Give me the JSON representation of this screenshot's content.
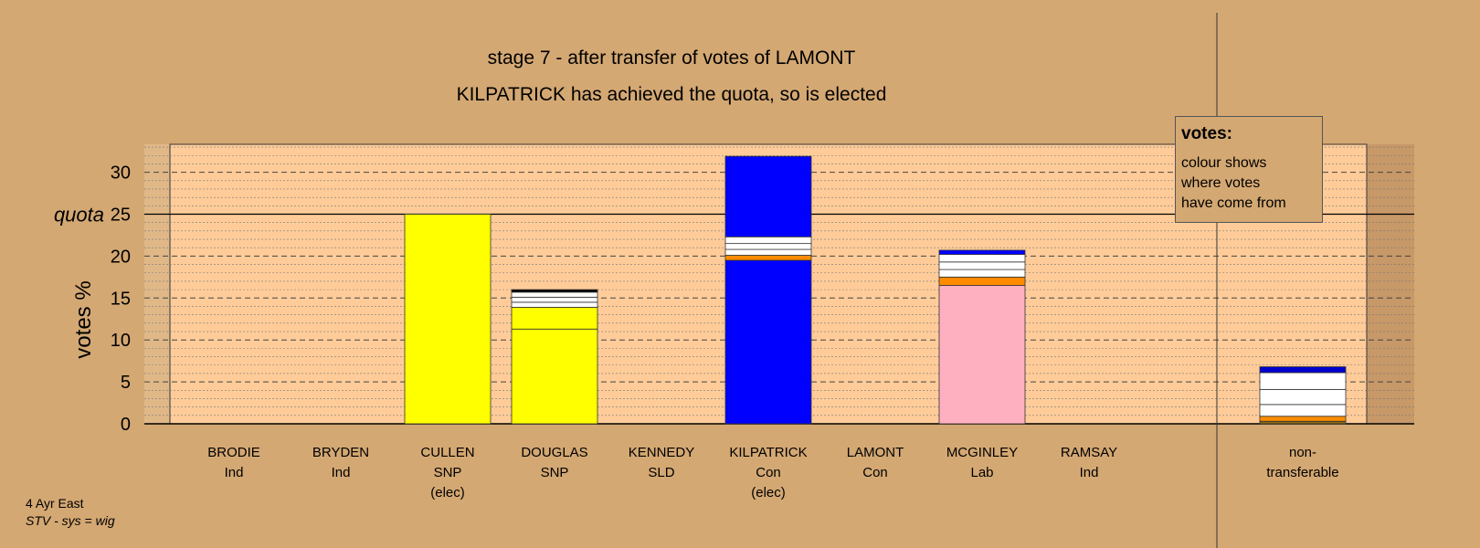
{
  "chart_data": {
    "type": "bar",
    "title": "stage 7 - after transfer of votes of LAMONT",
    "subtitle": "KILPATRICK has achieved the quota, so is elected",
    "ylabel": "votes %",
    "ylim": [
      0,
      33
    ],
    "yticks": [
      0,
      5,
      10,
      15,
      20,
      25,
      30
    ],
    "quota": 25,
    "quota_label": "quota",
    "grid": true,
    "legend_placement": "top-right",
    "categories": [
      {
        "name": "BRODIE",
        "party": "Ind",
        "note": ""
      },
      {
        "name": "BRYDEN",
        "party": "Ind",
        "note": ""
      },
      {
        "name": "CULLEN",
        "party": "SNP",
        "note": "(elec)"
      },
      {
        "name": "DOUGLAS",
        "party": "SNP",
        "note": ""
      },
      {
        "name": "KENNEDY",
        "party": "SLD",
        "note": ""
      },
      {
        "name": "KILPATRICK",
        "party": "Con",
        "note": "(elec)"
      },
      {
        "name": "LAMONT",
        "party": "Con",
        "note": ""
      },
      {
        "name": "MCGINLEY",
        "party": "Lab",
        "note": ""
      },
      {
        "name": "RAMSAY",
        "party": "Ind",
        "note": ""
      }
    ],
    "nontransferable": {
      "line1": "non-",
      "line2": "transferable"
    },
    "bars": [
      [],
      [],
      [
        {
          "value": 25.0,
          "color": "#FFFF00"
        }
      ],
      [
        {
          "value": 11.3,
          "color": "#FFFF00"
        },
        {
          "value": 2.6,
          "color": "#FFFF00"
        },
        {
          "value": 0.6,
          "color": "#FFFFFF"
        },
        {
          "value": 0.6,
          "color": "#FFFFFF"
        },
        {
          "value": 0.6,
          "color": "#FFFFFF"
        },
        {
          "value": 0.3,
          "color": "#000000"
        }
      ],
      [],
      [
        {
          "value": 19.5,
          "color": "#0000FF"
        },
        {
          "value": 0.6,
          "color": "#FF8C00"
        },
        {
          "value": 0.7,
          "color": "#FFFFFF"
        },
        {
          "value": 0.7,
          "color": "#FFFFFF"
        },
        {
          "value": 0.8,
          "color": "#FFFFFF"
        },
        {
          "value": 9.6,
          "color": "#0000FF"
        }
      ],
      [],
      [
        {
          "value": 16.5,
          "color": "#FFB0C0"
        },
        {
          "value": 1.0,
          "color": "#FF8C00"
        },
        {
          "value": 0.9,
          "color": "#FFFFFF"
        },
        {
          "value": 0.9,
          "color": "#FFFFFF"
        },
        {
          "value": 0.9,
          "color": "#FFFFFF"
        },
        {
          "value": 0.5,
          "color": "#0000FF"
        }
      ],
      []
    ],
    "nontransferable_bar": [
      {
        "value": 0.3,
        "color": "#8B6914"
      },
      {
        "value": 0.6,
        "color": "#FF8C00"
      },
      {
        "value": 1.4,
        "color": "#FFFFFF"
      },
      {
        "value": 1.8,
        "color": "#FFFFFF"
      },
      {
        "value": 2.0,
        "color": "#FFFFFF"
      },
      {
        "value": 0.7,
        "color": "#0000CC"
      }
    ]
  },
  "legend": {
    "title": "votes:",
    "lines": [
      "colour shows",
      "where votes",
      "have come from"
    ]
  },
  "footer": {
    "line1": "4 Ayr East",
    "line2": "STV - sys = wig"
  }
}
